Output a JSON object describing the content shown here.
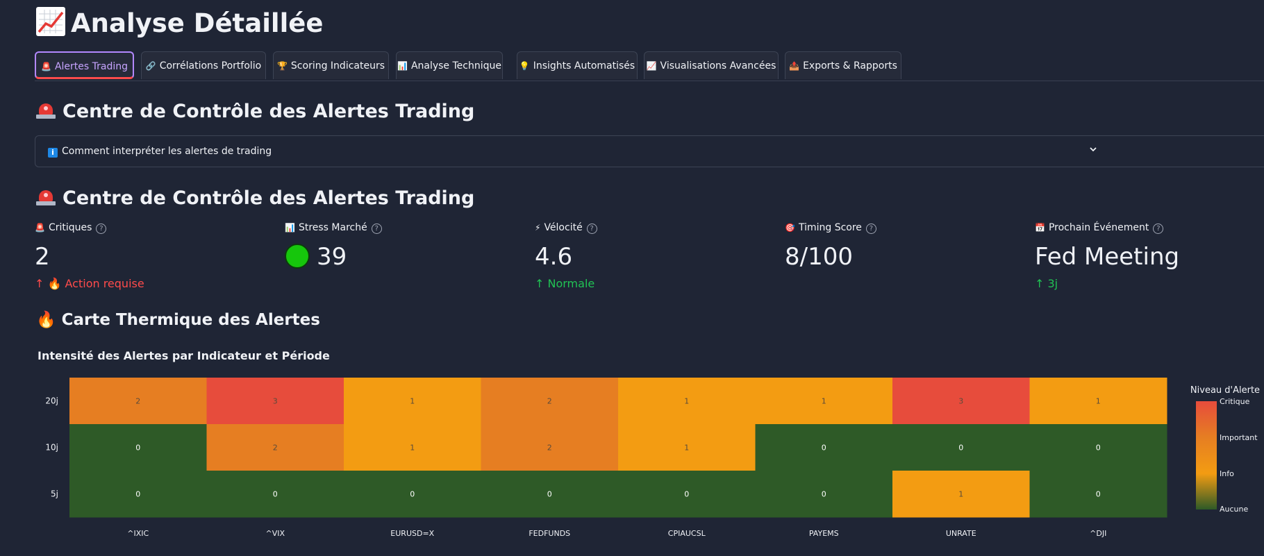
{
  "page": {
    "title": "Analyse Détaillée"
  },
  "tabs": [
    {
      "icon": "siren-icon",
      "label": "Alertes Trading",
      "active": true
    },
    {
      "icon": "link-icon",
      "label": "Corrélations Portfolio"
    },
    {
      "icon": "trophy-icon",
      "label": "Scoring Indicateurs"
    },
    {
      "icon": "bar-chart-icon",
      "label": "Analyse Technique"
    },
    {
      "icon": "lightbulb-icon",
      "label": "Insights Automatisés"
    },
    {
      "icon": "trending-up-icon",
      "label": "Visualisations Avancées"
    },
    {
      "icon": "outbox-icon",
      "label": "Exports & Rapports"
    }
  ],
  "section": {
    "title": "Centre de Contrôle des Alertes Trading",
    "expander_label": "Comment interpréter les alertes de trading",
    "title_repeat": "Centre de Contrôle des Alertes Trading"
  },
  "metrics": [
    {
      "icon": "siren-icon",
      "label": "Critiques",
      "value": "2",
      "delta": "🔥 Action requise",
      "delta_color": "#ff4b4b"
    },
    {
      "icon": "bar-chart-icon",
      "label": "Stress Marché",
      "value": "39",
      "indicator_color": "#16c60c"
    },
    {
      "icon": "lightning-icon",
      "label": "Vélocité",
      "value": "4.6",
      "delta": "Normale",
      "delta_color": "#21c354"
    },
    {
      "icon": "target-icon",
      "label": "Timing Score",
      "value": "8/100"
    },
    {
      "icon": "calendar-icon",
      "label": "Prochain Événement",
      "value": "Fed Meeting",
      "delta": "3j",
      "delta_color": "#21c354"
    }
  ],
  "heatmap_section": {
    "title": "🔥 Carte Thermique des Alertes"
  },
  "colors": {
    "background": "#1f2535",
    "accent": "#b388ff",
    "critical": "#e74c3c",
    "important": "#e67e22",
    "info": "#f39c12",
    "none": "#2e5a27"
  },
  "chart_data": {
    "type": "heatmap",
    "title": "Intensité des Alertes par Indicateur et Période",
    "x": [
      "^IXIC",
      "^VIX",
      "EURUSD=X",
      "FEDFUNDS",
      "CPIAUCSL",
      "PAYEMS",
      "UNRATE",
      "^DJI"
    ],
    "y": [
      "20j",
      "10j",
      "5j"
    ],
    "z": [
      [
        2,
        3,
        1,
        2,
        1,
        1,
        3,
        1
      ],
      [
        0,
        2,
        1,
        2,
        1,
        0,
        0,
        0
      ],
      [
        0,
        0,
        0,
        0,
        0,
        0,
        1,
        0
      ]
    ],
    "zlim": [
      0,
      3
    ],
    "colorbar": {
      "title": "Niveau d'Alerte",
      "tick_labels": [
        "Aucune",
        "Info",
        "Important",
        "Critique"
      ],
      "tick_values": [
        0,
        1,
        2,
        3
      ]
    },
    "colorscale": [
      "#2e5a27",
      "#f39c12",
      "#e67e22",
      "#e74c3c"
    ]
  }
}
